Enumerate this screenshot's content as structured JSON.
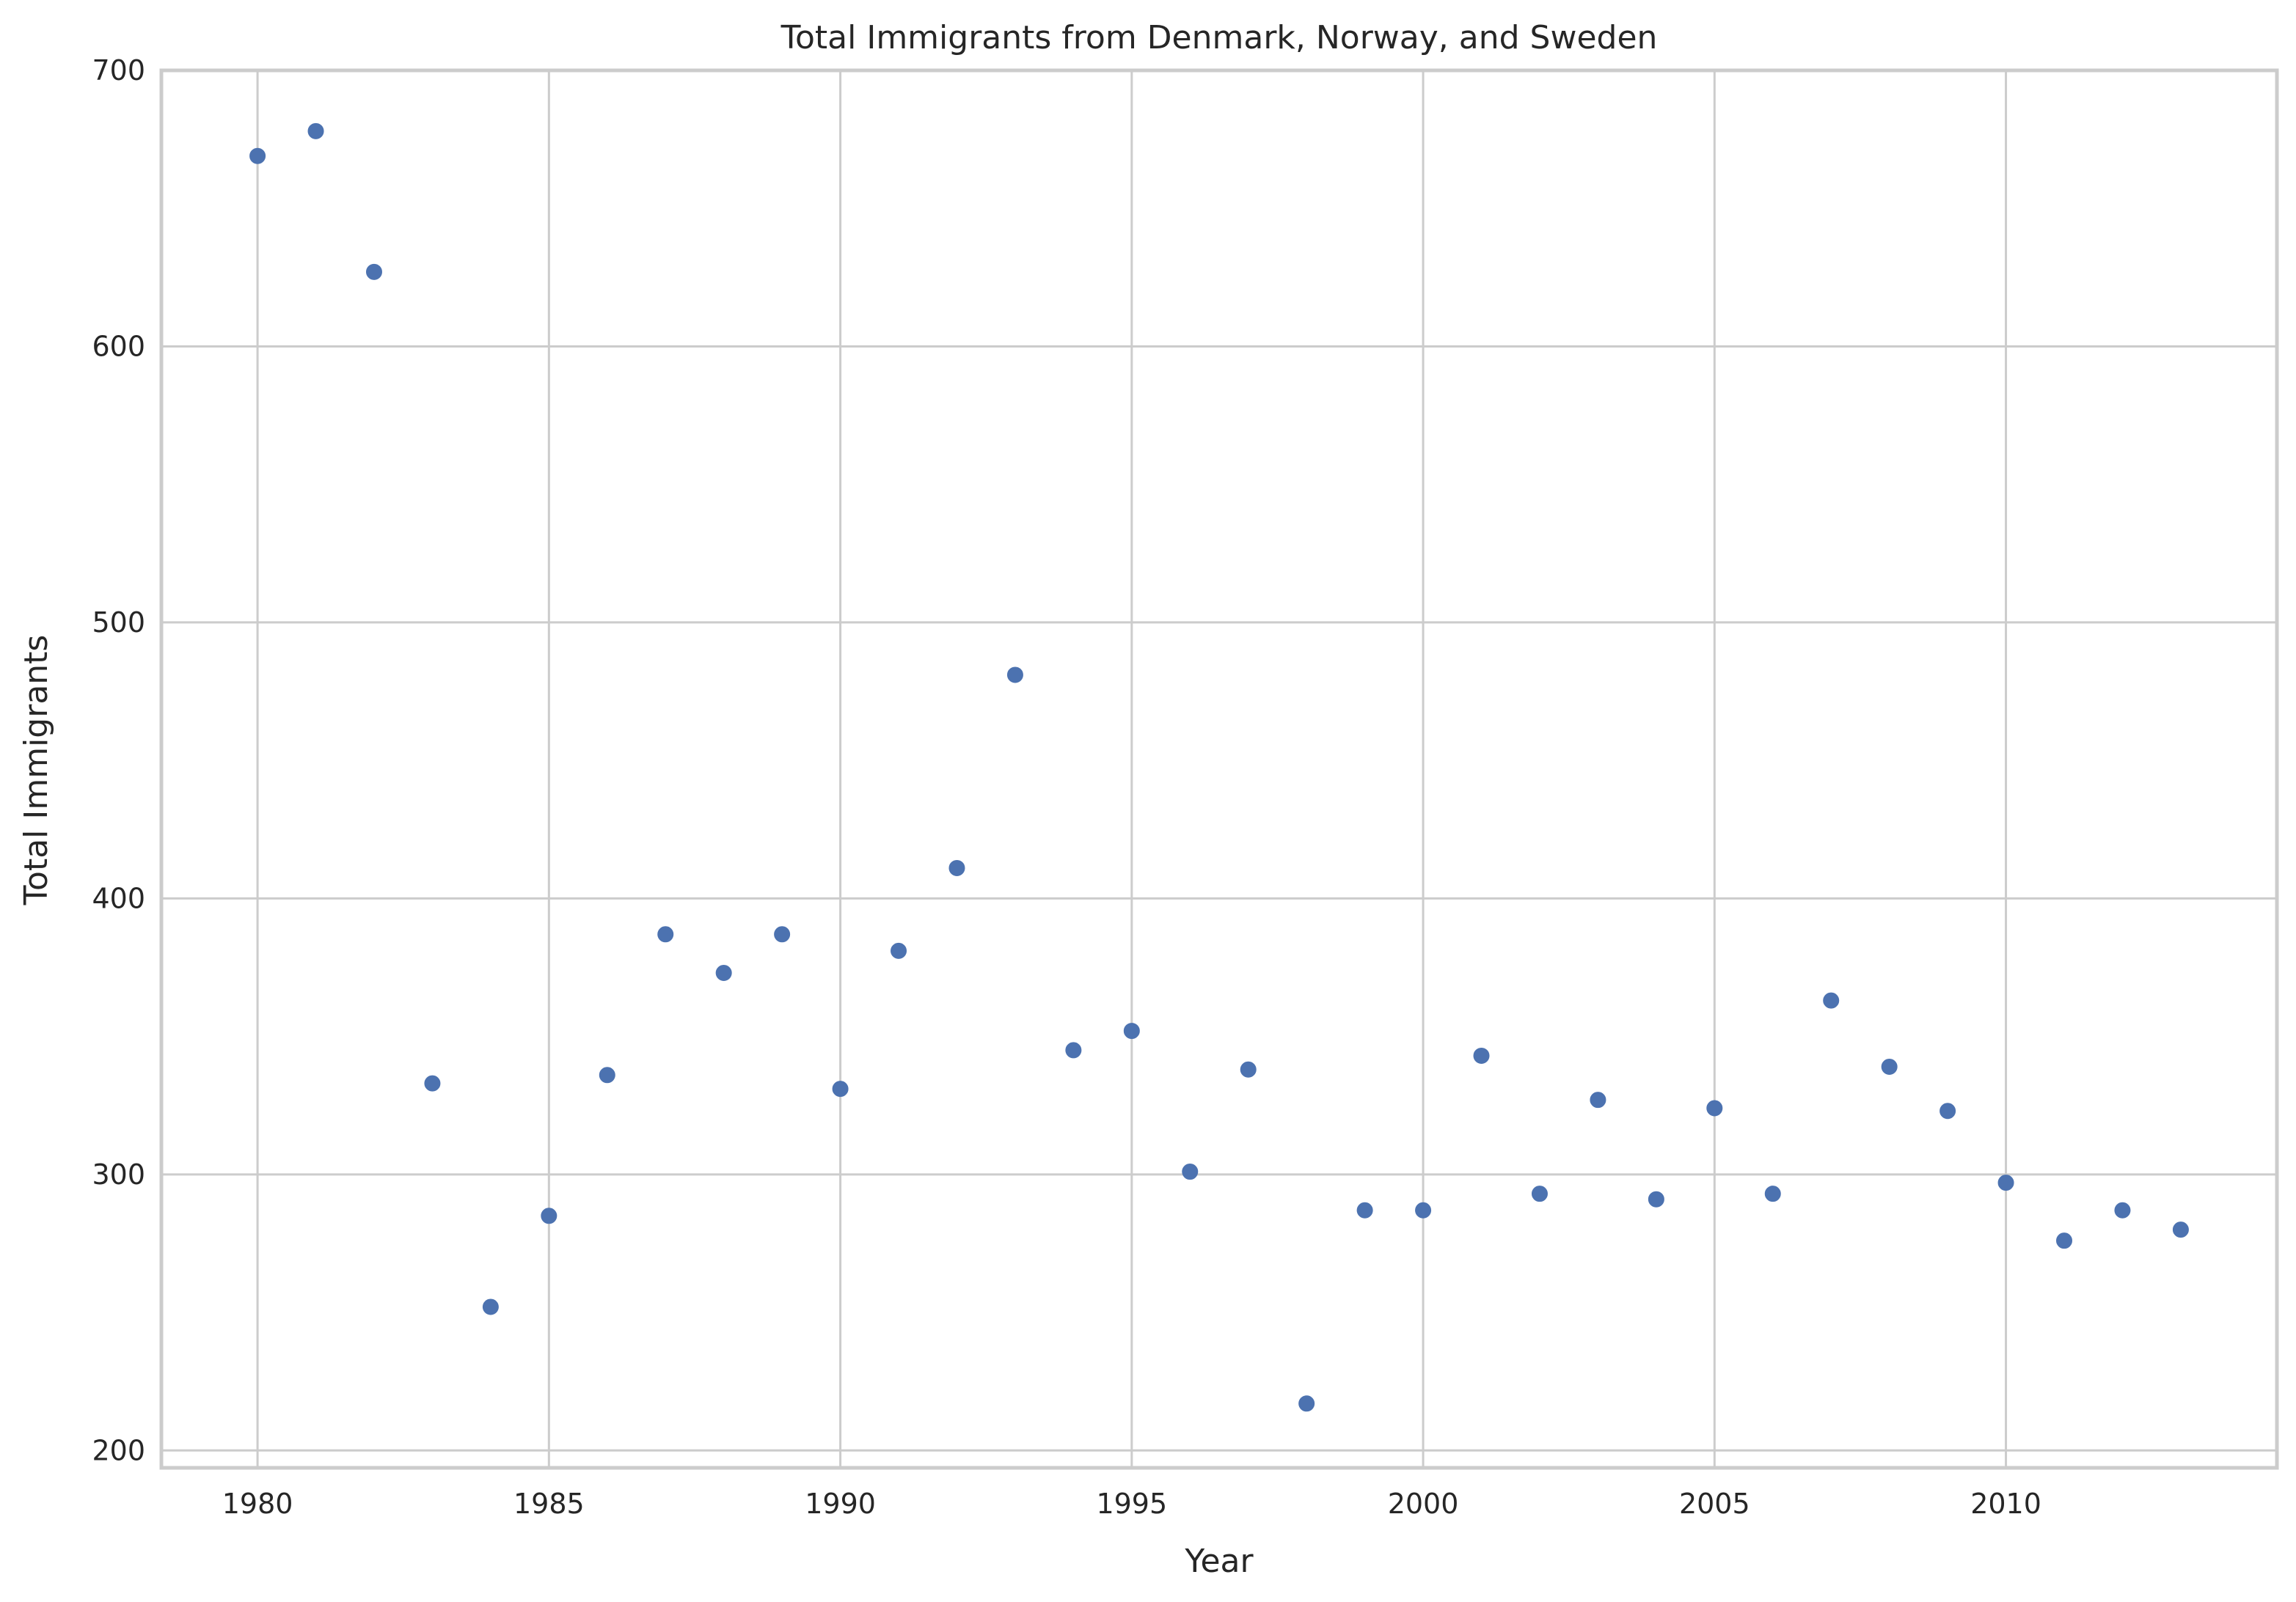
{
  "chart_data": {
    "type": "scatter",
    "title": "Total Immigrants from Denmark, Norway, and Sweden",
    "xlabel": "Year",
    "ylabel": "Total Immigrants",
    "xlim": [
      1978.35,
      2014.65
    ],
    "ylim": [
      193.7,
      700
    ],
    "xticks": [
      1980,
      1985,
      1990,
      1995,
      2000,
      2005,
      2010
    ],
    "yticks": [
      200,
      300,
      400,
      500,
      600,
      700
    ],
    "grid": true,
    "point_color": "#4c72b0",
    "x": [
      1980,
      1981,
      1982,
      1983,
      1984,
      1985,
      1986,
      1987,
      1988,
      1989,
      1990,
      1991,
      1992,
      1993,
      1994,
      1995,
      1996,
      1997,
      1998,
      1999,
      2000,
      2001,
      2002,
      2003,
      2004,
      2005,
      2006,
      2007,
      2008,
      2009,
      2010,
      2011,
      2012,
      2013
    ],
    "y": [
      669,
      678,
      627,
      333,
      252,
      285,
      336,
      387,
      373,
      387,
      331,
      381,
      411,
      481,
      345,
      352,
      301,
      338,
      217,
      287,
      287,
      343,
      293,
      327,
      291,
      324,
      293,
      363,
      339,
      323,
      297,
      276,
      287,
      280
    ]
  }
}
